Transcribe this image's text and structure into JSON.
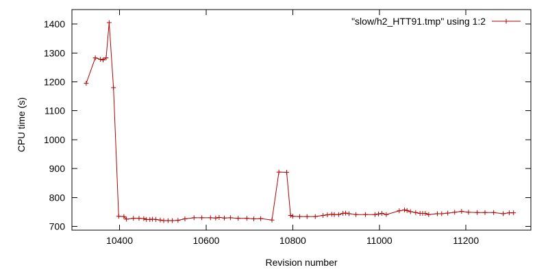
{
  "chart_data": {
    "type": "line",
    "title": "",
    "xlabel": "Revision number",
    "ylabel": "CPU time (s)",
    "xlim": [
      10290,
      11350
    ],
    "ylim": [
      687,
      1450
    ],
    "x_ticks": [
      10400,
      10600,
      10800,
      11000,
      11200
    ],
    "y_ticks": [
      700,
      800,
      900,
      1000,
      1100,
      1200,
      1300,
      1400
    ],
    "grid": false,
    "legend_position": "top-right",
    "series": [
      {
        "name": "\"slow/h2_HTT91.tmp\" using 1:2",
        "color": "#b00000",
        "marker": "plus",
        "points": [
          [
            10323,
            1195
          ],
          [
            10344,
            1283
          ],
          [
            10356,
            1278
          ],
          [
            10362,
            1276
          ],
          [
            10369,
            1283
          ],
          [
            10376,
            1405
          ],
          [
            10386,
            1180
          ],
          [
            10398,
            735
          ],
          [
            10410,
            734
          ],
          [
            10416,
            725
          ],
          [
            10432,
            728
          ],
          [
            10445,
            728
          ],
          [
            10456,
            727
          ],
          [
            10462,
            724
          ],
          [
            10470,
            724
          ],
          [
            10476,
            725
          ],
          [
            10484,
            724
          ],
          [
            10494,
            722
          ],
          [
            10502,
            720
          ],
          [
            10512,
            720
          ],
          [
            10522,
            720
          ],
          [
            10535,
            721
          ],
          [
            10551,
            726
          ],
          [
            10572,
            730
          ],
          [
            10590,
            730
          ],
          [
            10610,
            730
          ],
          [
            10622,
            729
          ],
          [
            10630,
            731
          ],
          [
            10642,
            729
          ],
          [
            10656,
            730
          ],
          [
            10674,
            728
          ],
          [
            10694,
            728
          ],
          [
            10710,
            726
          ],
          [
            10726,
            727
          ],
          [
            10752,
            722
          ],
          [
            10768,
            888
          ],
          [
            10786,
            887
          ],
          [
            10795,
            738
          ],
          [
            10800,
            735
          ],
          [
            10816,
            734
          ],
          [
            10833,
            734
          ],
          [
            10852,
            734
          ],
          [
            10870,
            738
          ],
          [
            10880,
            740
          ],
          [
            10890,
            742
          ],
          [
            10896,
            741
          ],
          [
            10906,
            741
          ],
          [
            10916,
            745
          ],
          [
            10922,
            746
          ],
          [
            10930,
            744
          ],
          [
            10946,
            741
          ],
          [
            10968,
            741
          ],
          [
            10990,
            741
          ],
          [
            10998,
            743
          ],
          [
            11006,
            745
          ],
          [
            11016,
            741
          ],
          [
            11046,
            754
          ],
          [
            11058,
            757
          ],
          [
            11064,
            755
          ],
          [
            11072,
            751
          ],
          [
            11084,
            748
          ],
          [
            11094,
            745
          ],
          [
            11100,
            745
          ],
          [
            11106,
            745
          ],
          [
            11114,
            741
          ],
          [
            11134,
            744
          ],
          [
            11144,
            744
          ],
          [
            11158,
            746
          ],
          [
            11174,
            749
          ],
          [
            11190,
            752
          ],
          [
            11206,
            749
          ],
          [
            11226,
            748
          ],
          [
            11244,
            748
          ],
          [
            11264,
            748
          ],
          [
            11286,
            744
          ],
          [
            11300,
            747
          ],
          [
            11310,
            747
          ]
        ]
      }
    ]
  }
}
